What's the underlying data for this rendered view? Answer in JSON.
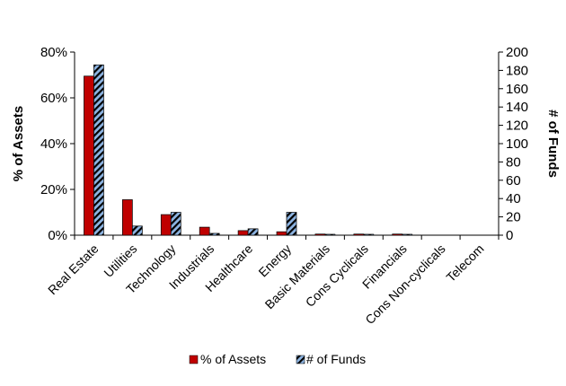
{
  "chart_data": {
    "type": "bar",
    "title": "",
    "categories": [
      "Real Estate",
      "Utilities",
      "Technology",
      "Industrials",
      "Healthcare",
      "Energy",
      "Basic Materials",
      "Cons Cyclicals",
      "Financials",
      "Cons Non-cyclicals",
      "Telecom"
    ],
    "series": [
      {
        "name": "% of Assets",
        "axis": "left",
        "color": "#C00000",
        "values": [
          69.5,
          15.5,
          9,
          3.5,
          2,
          1.5,
          0.5,
          0.5,
          0.5,
          0,
          0
        ]
      },
      {
        "name": "# of Funds",
        "axis": "right",
        "color": "#8DB4E2",
        "pattern": "black diagonal hatch",
        "values": [
          186,
          10,
          25,
          2,
          7,
          25,
          1,
          1,
          1,
          0,
          0
        ]
      }
    ],
    "y_left": {
      "label": "% of Assets",
      "ylim": [
        0,
        80
      ],
      "ticks": [
        "0%",
        "20%",
        "40%",
        "60%",
        "80%"
      ]
    },
    "y_right": {
      "label": "# of Funds",
      "ylim": [
        0,
        200
      ],
      "ticks": [
        "0",
        "20",
        "40",
        "60",
        "80",
        "100",
        "120",
        "140",
        "160",
        "180",
        "200"
      ]
    },
    "grid": false,
    "legend": "bottom"
  }
}
